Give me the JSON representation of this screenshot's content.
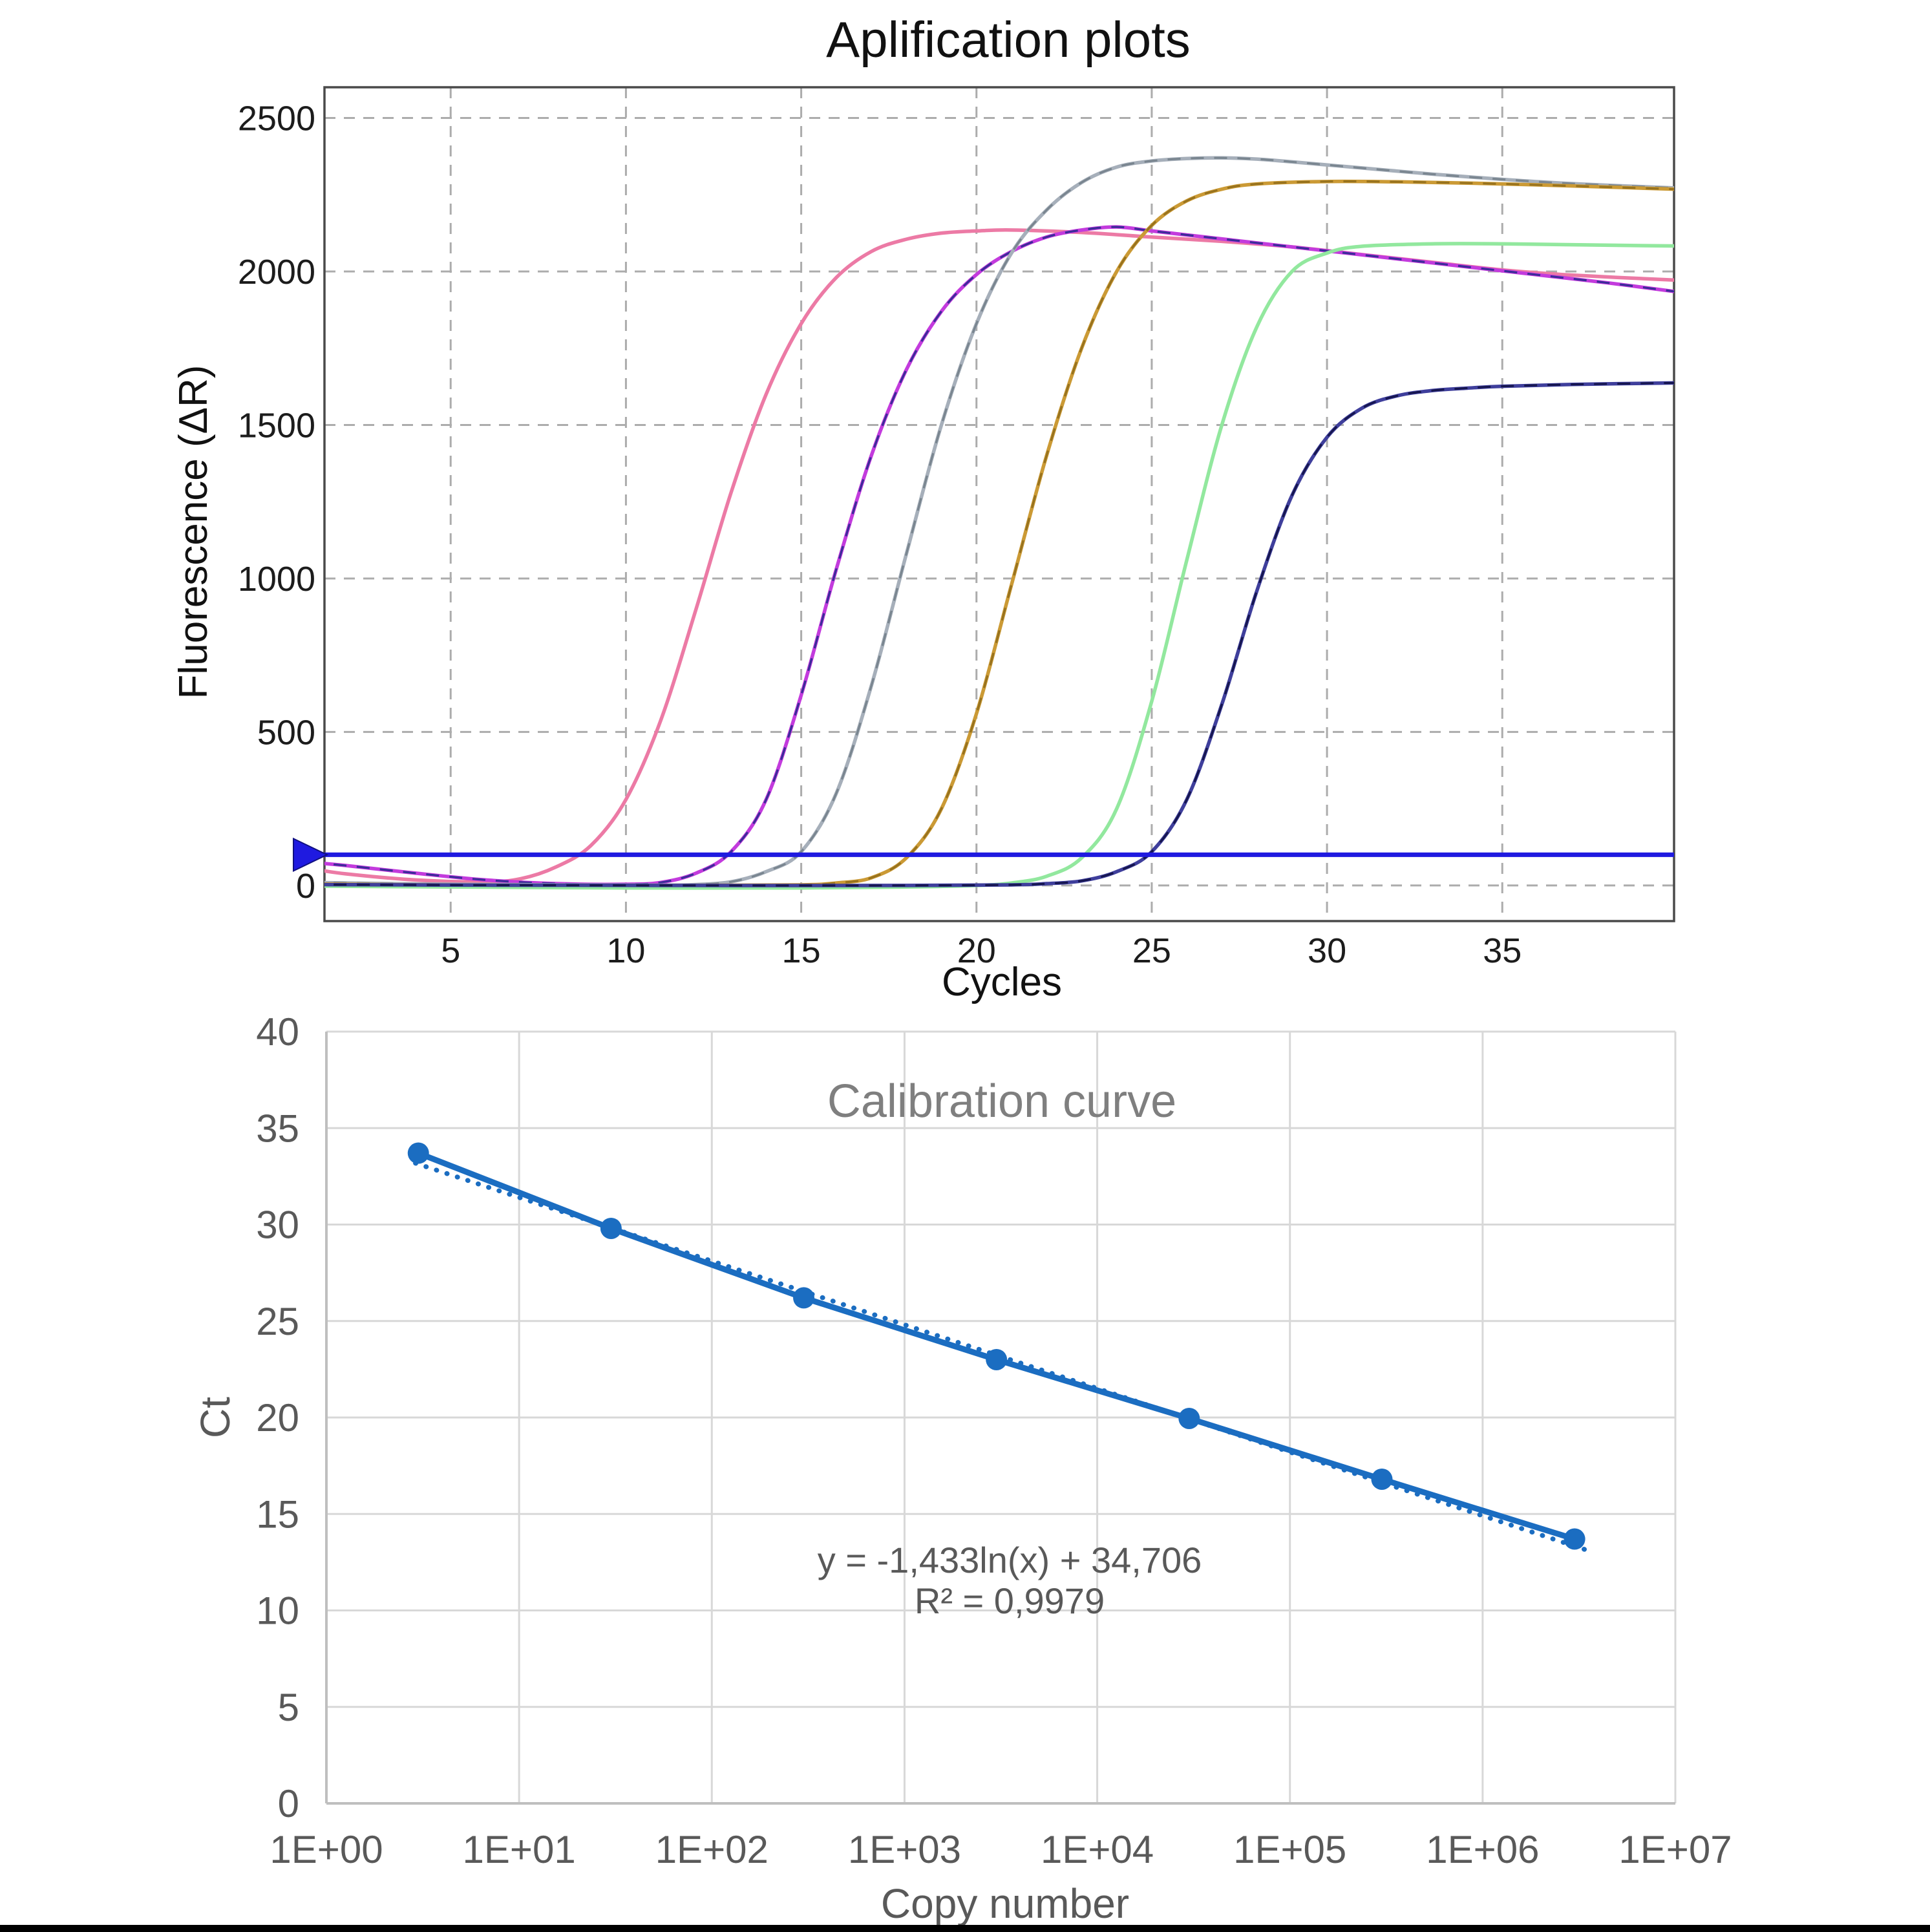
{
  "page": {
    "background": "#ffffff"
  },
  "chart_data": [
    {
      "type": "line",
      "title": "Aplification plots",
      "xlabel": "Cycles",
      "ylabel": "Fluorescence (ΔR)",
      "x_axis": {
        "min": 1.4,
        "max": 39.9,
        "ticks": [
          5,
          10,
          15,
          20,
          25,
          30,
          35
        ]
      },
      "y_axis": {
        "plot_min": -116,
        "plot_max": 2600,
        "ticks": [
          0,
          500,
          1000,
          1500,
          2000,
          2500
        ]
      },
      "grid": "dashed",
      "grid_color": "#acacac",
      "border_color": "#4a4a4a",
      "text_color": "#111111",
      "legend_position": "none",
      "threshold": {
        "value": 100,
        "color": "#1f1ae0",
        "marker": "left-triangle"
      },
      "series": [
        {
          "name": "sample-1-pink",
          "color": "#ec7aa5",
          "points": [
            [
              1,
              55
            ],
            [
              2,
              38
            ],
            [
              4,
              18
            ],
            [
              6,
              12
            ],
            [
              7,
              22
            ],
            [
              8,
              60
            ],
            [
              9,
              130
            ],
            [
              10,
              280
            ],
            [
              11,
              540
            ],
            [
              12,
              900
            ],
            [
              13,
              1280
            ],
            [
              14,
              1600
            ],
            [
              15,
              1830
            ],
            [
              16,
              1980
            ],
            [
              17,
              2065
            ],
            [
              18,
              2105
            ],
            [
              19,
              2125
            ],
            [
              20,
              2132
            ],
            [
              21,
              2135
            ],
            [
              23,
              2127
            ],
            [
              25,
              2112
            ],
            [
              27,
              2098
            ],
            [
              29,
              2080
            ],
            [
              31,
              2055
            ],
            [
              33,
              2030
            ],
            [
              35,
              2005
            ],
            [
              37,
              1988
            ],
            [
              39.9,
              1972
            ]
          ]
        },
        {
          "name": "sample-2-magenta",
          "color": "#c33bdd",
          "overlay_color": "#3b2c99",
          "points": [
            [
              1,
              75
            ],
            [
              2,
              65
            ],
            [
              4,
              40
            ],
            [
              6,
              18
            ],
            [
              8,
              6
            ],
            [
              10,
              4
            ],
            [
              11,
              10
            ],
            [
              12,
              40
            ],
            [
              13,
              110
            ],
            [
              14,
              280
            ],
            [
              15,
              620
            ],
            [
              16,
              1030
            ],
            [
              17,
              1400
            ],
            [
              18,
              1680
            ],
            [
              19,
              1870
            ],
            [
              20,
              1990
            ],
            [
              21,
              2065
            ],
            [
              22,
              2112
            ],
            [
              23,
              2135
            ],
            [
              24,
              2145
            ],
            [
              25,
              2132
            ],
            [
              26,
              2119
            ],
            [
              27,
              2106
            ],
            [
              28,
              2093
            ],
            [
              30,
              2067
            ],
            [
              32,
              2041
            ],
            [
              34,
              2015
            ],
            [
              36,
              1989
            ],
            [
              38,
              1963
            ],
            [
              39.9,
              1935
            ]
          ]
        },
        {
          "name": "sample-3-gray",
          "color": "#a6afba",
          "overlay_color": "#79858f",
          "points": [
            [
              1,
              10
            ],
            [
              4,
              5
            ],
            [
              8,
              2
            ],
            [
              11,
              1
            ],
            [
              12,
              3
            ],
            [
              13,
              12
            ],
            [
              14,
              45
            ],
            [
              15,
              110
            ],
            [
              16,
              300
            ],
            [
              17,
              650
            ],
            [
              18,
              1080
            ],
            [
              19,
              1500
            ],
            [
              20,
              1830
            ],
            [
              21,
              2060
            ],
            [
              22,
              2200
            ],
            [
              23,
              2290
            ],
            [
              24,
              2340
            ],
            [
              25,
              2360
            ],
            [
              26,
              2368
            ],
            [
              27,
              2370
            ],
            [
              28,
              2366
            ],
            [
              29,
              2357
            ],
            [
              31,
              2337
            ],
            [
              33,
              2317
            ],
            [
              35,
              2300
            ],
            [
              37,
              2286
            ],
            [
              39.9,
              2272
            ]
          ]
        },
        {
          "name": "sample-4-gold",
          "color": "#cb9a35",
          "overlay_color": "#97721e",
          "points": [
            [
              1,
              5
            ],
            [
              4,
              2
            ],
            [
              8,
              0
            ],
            [
              12,
              0
            ],
            [
              15,
              2
            ],
            [
              16,
              8
            ],
            [
              17,
              25
            ],
            [
              18,
              90
            ],
            [
              19,
              250
            ],
            [
              20,
              560
            ],
            [
              21,
              980
            ],
            [
              22,
              1400
            ],
            [
              23,
              1750
            ],
            [
              24,
              2000
            ],
            [
              25,
              2150
            ],
            [
              26,
              2230
            ],
            [
              27,
              2268
            ],
            [
              28,
              2285
            ],
            [
              30,
              2293
            ],
            [
              32,
              2292
            ],
            [
              34,
              2288
            ],
            [
              36,
              2282
            ],
            [
              38,
              2275
            ],
            [
              39.9,
              2268
            ]
          ]
        },
        {
          "name": "sample-5-green",
          "color": "#92e89e",
          "points": [
            [
              1,
              -2
            ],
            [
              5,
              -5
            ],
            [
              10,
              -8
            ],
            [
              15,
              -8
            ],
            [
              18,
              -5
            ],
            [
              20,
              0
            ],
            [
              21,
              8
            ],
            [
              22,
              30
            ],
            [
              23,
              90
            ],
            [
              24,
              250
            ],
            [
              25,
              600
            ],
            [
              26,
              1060
            ],
            [
              27,
              1500
            ],
            [
              28,
              1820
            ],
            [
              29,
              2000
            ],
            [
              30,
              2060
            ],
            [
              31,
              2082
            ],
            [
              33,
              2090
            ],
            [
              35,
              2090
            ],
            [
              37,
              2087
            ],
            [
              39.9,
              2083
            ]
          ]
        },
        {
          "name": "sample-6-navy",
          "color": "#3f3f9c",
          "overlay_color": "#16164f",
          "points": [
            [
              1,
              3
            ],
            [
              6,
              1
            ],
            [
              12,
              0
            ],
            [
              18,
              0
            ],
            [
              21,
              2
            ],
            [
              22,
              6
            ],
            [
              23,
              15
            ],
            [
              24,
              45
            ],
            [
              25,
              110
            ],
            [
              26,
              280
            ],
            [
              27,
              590
            ],
            [
              28,
              960
            ],
            [
              29,
              1270
            ],
            [
              30,
              1460
            ],
            [
              31,
              1555
            ],
            [
              32,
              1595
            ],
            [
              33,
              1612
            ],
            [
              34,
              1620
            ],
            [
              35,
              1626
            ],
            [
              37,
              1632
            ],
            [
              39.9,
              1637
            ]
          ]
        }
      ]
    },
    {
      "type": "scatter",
      "title": "Calibration curve",
      "xlabel": "Copy number",
      "ylabel": "Ct",
      "x_axis": {
        "scale": "log",
        "decades": 7,
        "tick_labels": [
          "1E+00",
          "1E+01",
          "1E+02",
          "1E+03",
          "1E+04",
          "1E+05",
          "1E+06",
          "1E+07"
        ]
      },
      "y_axis": {
        "min": 0,
        "max": 40,
        "step": 5,
        "tick_labels": [
          0,
          5,
          10,
          15,
          20,
          25,
          30,
          35,
          40
        ]
      },
      "grid": "solid",
      "grid_color": "#d8d8d8",
      "axis_color": "#bfbfbf",
      "text_color": "#595959",
      "title_color": "#7f7f7f",
      "legend_position": "none",
      "series_color": "#1b6dc1",
      "points": [
        {
          "copy_number": 3,
          "ct": 33.7
        },
        {
          "copy_number": 30,
          "ct": 29.8
        },
        {
          "copy_number": 300,
          "ct": 26.2
        },
        {
          "copy_number": 3000,
          "ct": 23.0
        },
        {
          "copy_number": 30000,
          "ct": 19.95
        },
        {
          "copy_number": 300000,
          "ct": 16.8
        },
        {
          "copy_number": 3000000,
          "ct": 13.7
        }
      ],
      "trendline": {
        "model": "logarithmic",
        "slope": -1.433,
        "intercept": 34.706,
        "equation": "y = -1,433ln(x) + 34,706",
        "r_squared": "R² = 0,9979",
        "style": "dotted"
      }
    }
  ]
}
